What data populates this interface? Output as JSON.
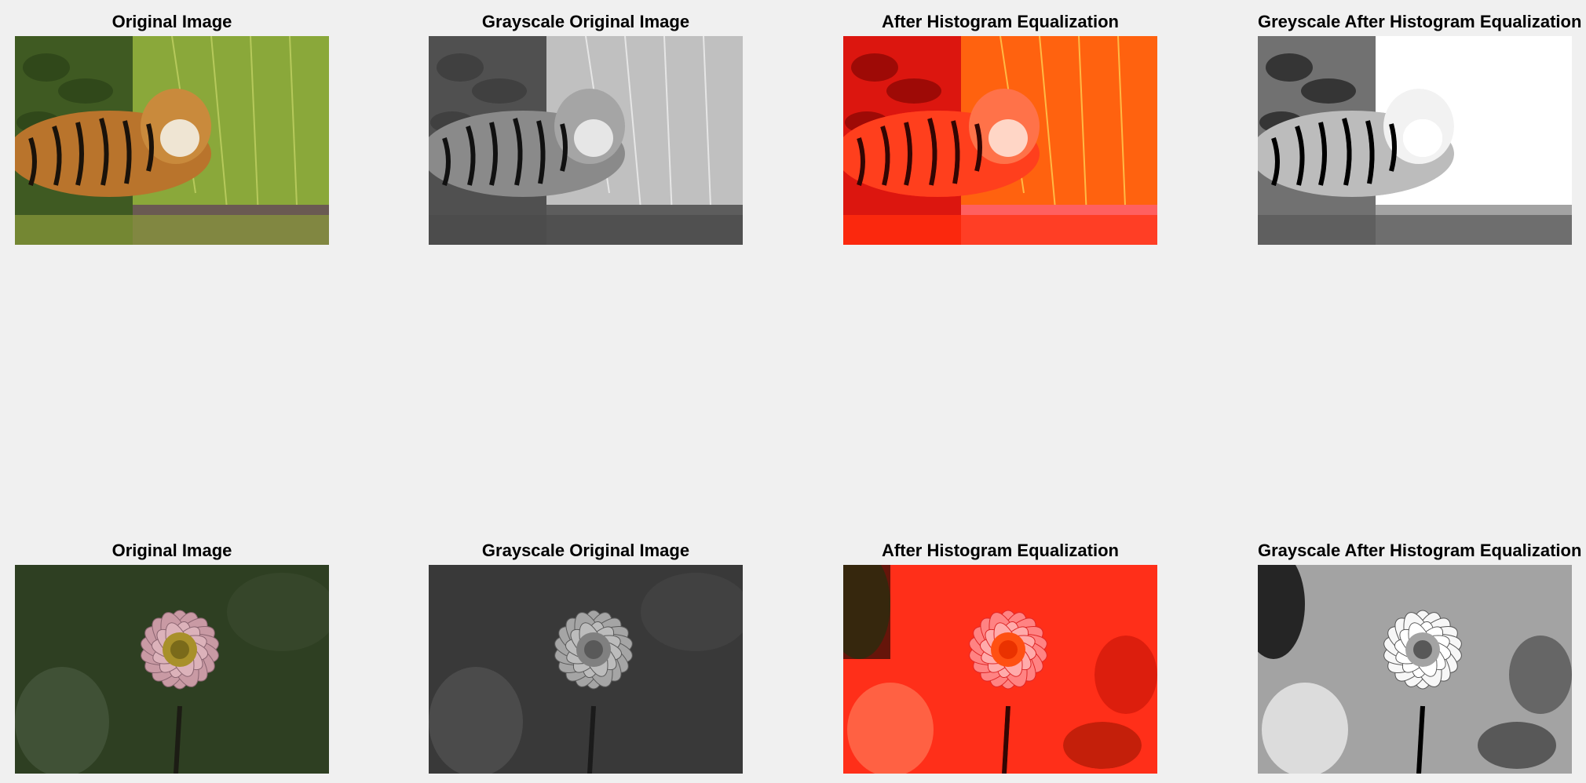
{
  "figure": {
    "rows": [
      {
        "subject_icon": "tiger-image",
        "panels": [
          {
            "title": "Original Image",
            "variant": "original"
          },
          {
            "title": "Grayscale Original Image",
            "variant": "grayscale"
          },
          {
            "title": "After Histogram Equalization",
            "variant": "equalized-color"
          },
          {
            "title": "Greyscale After Histogram Equalization",
            "variant": "equalized-grayscale"
          }
        ]
      },
      {
        "subject_icon": "dahlia-image",
        "panels": [
          {
            "title": "Original Image",
            "variant": "original"
          },
          {
            "title": "Grayscale Original Image",
            "variant": "grayscale"
          },
          {
            "title": "After Histogram Equalization",
            "variant": "equalized-color"
          },
          {
            "title": "Grayscale After Histogram Equalization",
            "variant": "equalized-grayscale"
          }
        ]
      }
    ]
  },
  "colors": {
    "background": "#f0f0f0",
    "title_text": "#000000",
    "equalization_tint": "#ff3b2a"
  }
}
